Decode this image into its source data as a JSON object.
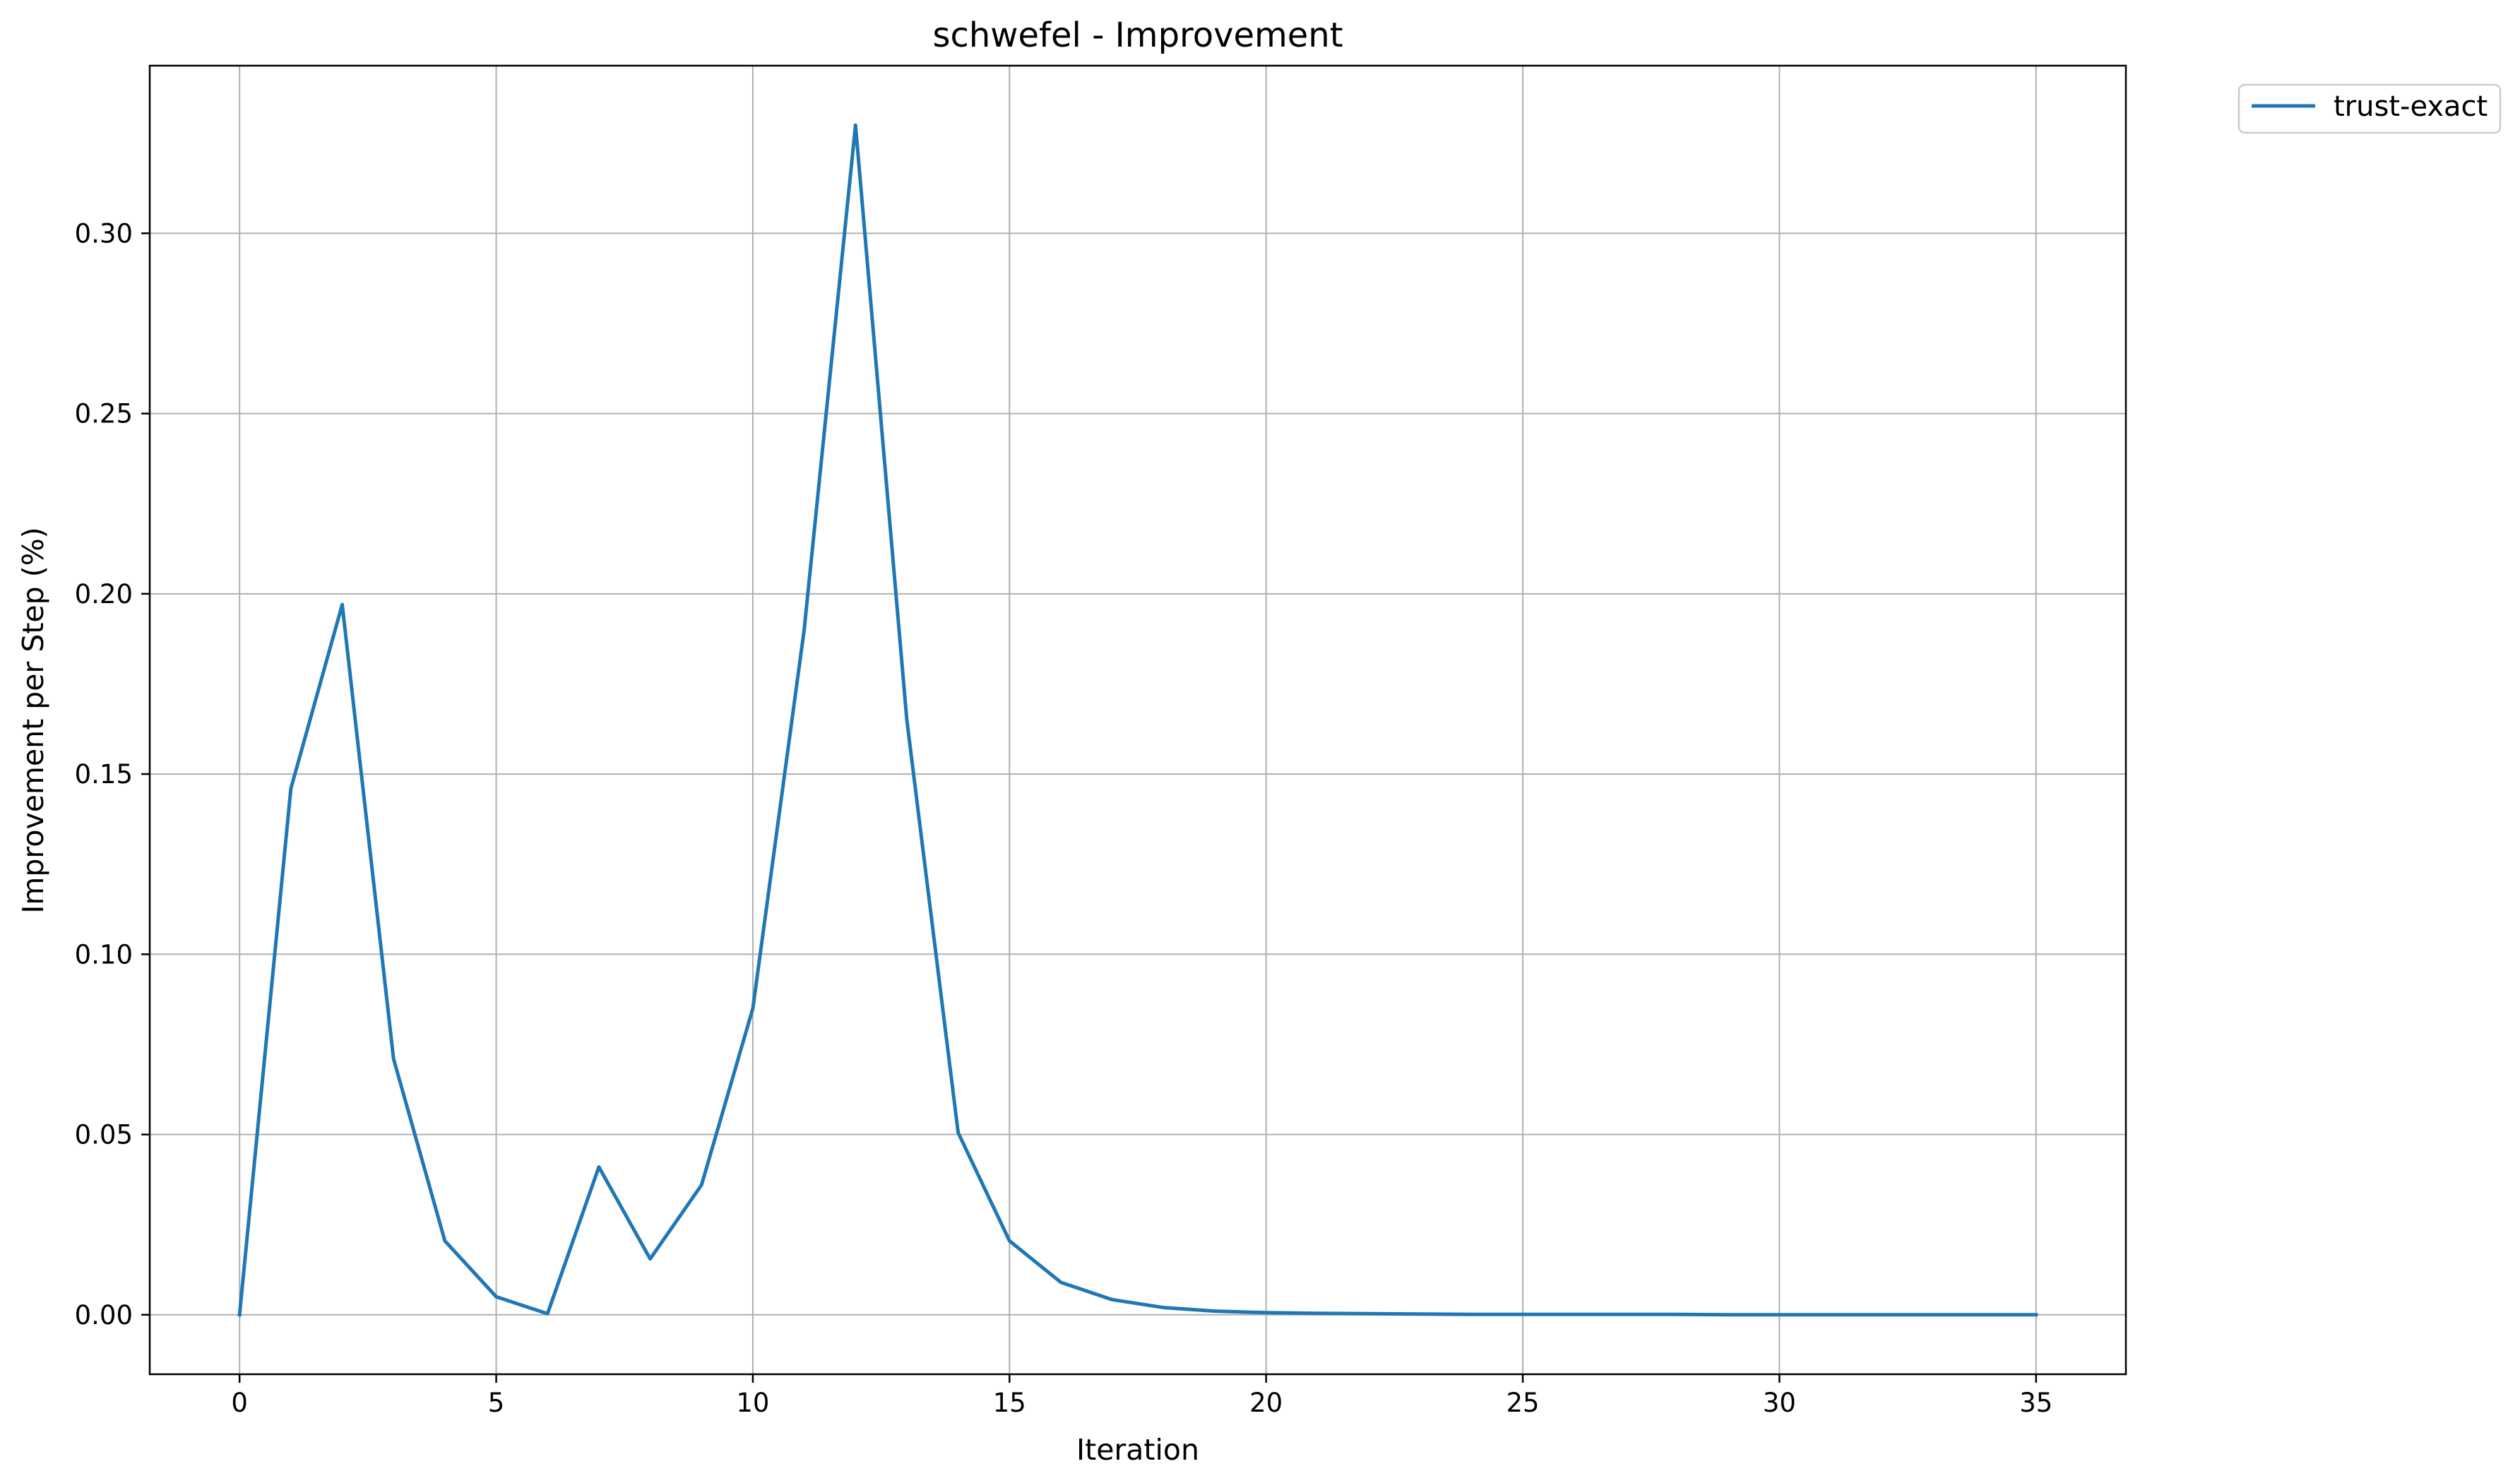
{
  "chart_data": {
    "type": "line",
    "title": "schwefel - Improvement",
    "xlabel": "Iteration",
    "ylabel": "Improvement per Step (%)",
    "xlim": [
      -1.75,
      36.75
    ],
    "ylim": [
      -0.0165,
      0.3465
    ],
    "xticks": [
      0,
      5,
      10,
      15,
      20,
      25,
      30,
      35
    ],
    "xtick_labels": [
      "0",
      "5",
      "10",
      "15",
      "20",
      "25",
      "30",
      "35"
    ],
    "yticks": [
      0.0,
      0.05,
      0.1,
      0.15,
      0.2,
      0.25,
      0.3
    ],
    "ytick_labels": [
      "0.00",
      "0.05",
      "0.10",
      "0.15",
      "0.20",
      "0.25",
      "0.30"
    ],
    "grid": true,
    "legend_position": "outside top-right",
    "series": [
      {
        "name": "trust-exact",
        "color": "#1f77b4",
        "x": [
          0,
          1,
          2,
          3,
          4,
          5,
          6,
          7,
          8,
          9,
          10,
          11,
          12,
          13,
          14,
          15,
          16,
          17,
          18,
          19,
          20,
          21,
          22,
          23,
          24,
          25,
          26,
          27,
          28,
          29,
          30,
          31,
          32,
          33,
          34,
          35
        ],
        "y": [
          0.0,
          0.146,
          0.197,
          0.071,
          0.0205,
          0.005,
          0.0003,
          0.041,
          0.0155,
          0.036,
          0.085,
          0.19,
          0.33,
          0.165,
          0.0505,
          0.0205,
          0.009,
          0.0042,
          0.002,
          0.001,
          0.0006,
          0.0004,
          0.0003,
          0.0002,
          0.0001,
          0.0001,
          0.0001,
          0.0001,
          0.0001,
          0.0,
          0.0,
          0.0,
          0.0,
          0.0,
          0.0,
          0.0
        ]
      }
    ]
  }
}
